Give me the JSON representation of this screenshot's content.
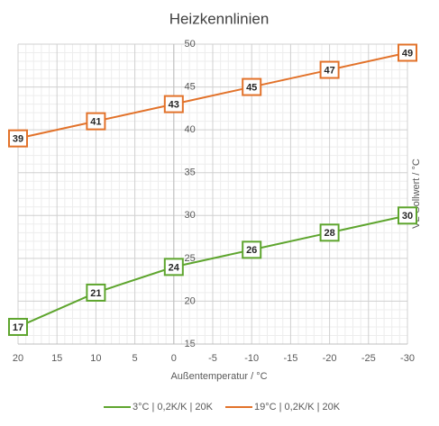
{
  "chart_data": {
    "type": "line",
    "title": "Heizkennlinien",
    "x_label": "Außentemperatur  / °C",
    "y_label": "VL-Sollwert / °C",
    "x": [
      20,
      10,
      0,
      -10,
      -20,
      -30
    ],
    "series": [
      {
        "name": "3°C | 0,2K/K | 20K",
        "color": "#5ea52e",
        "values": [
          17,
          21,
          24,
          26,
          28,
          30
        ]
      },
      {
        "name": "19°C | 0,2K/K | 20K",
        "color": "#e2722a",
        "values": [
          39,
          41,
          43,
          45,
          47,
          49
        ]
      }
    ],
    "xlim": [
      20,
      -30
    ],
    "xticks": [
      20,
      15,
      10,
      5,
      0,
      -5,
      -10,
      -15,
      -20,
      -25,
      -30
    ],
    "ylim": [
      15,
      50
    ],
    "yticks": [
      15,
      20,
      25,
      30,
      35,
      40,
      45,
      50
    ],
    "grid": true,
    "minor_grid": true,
    "legend": "bottom"
  }
}
